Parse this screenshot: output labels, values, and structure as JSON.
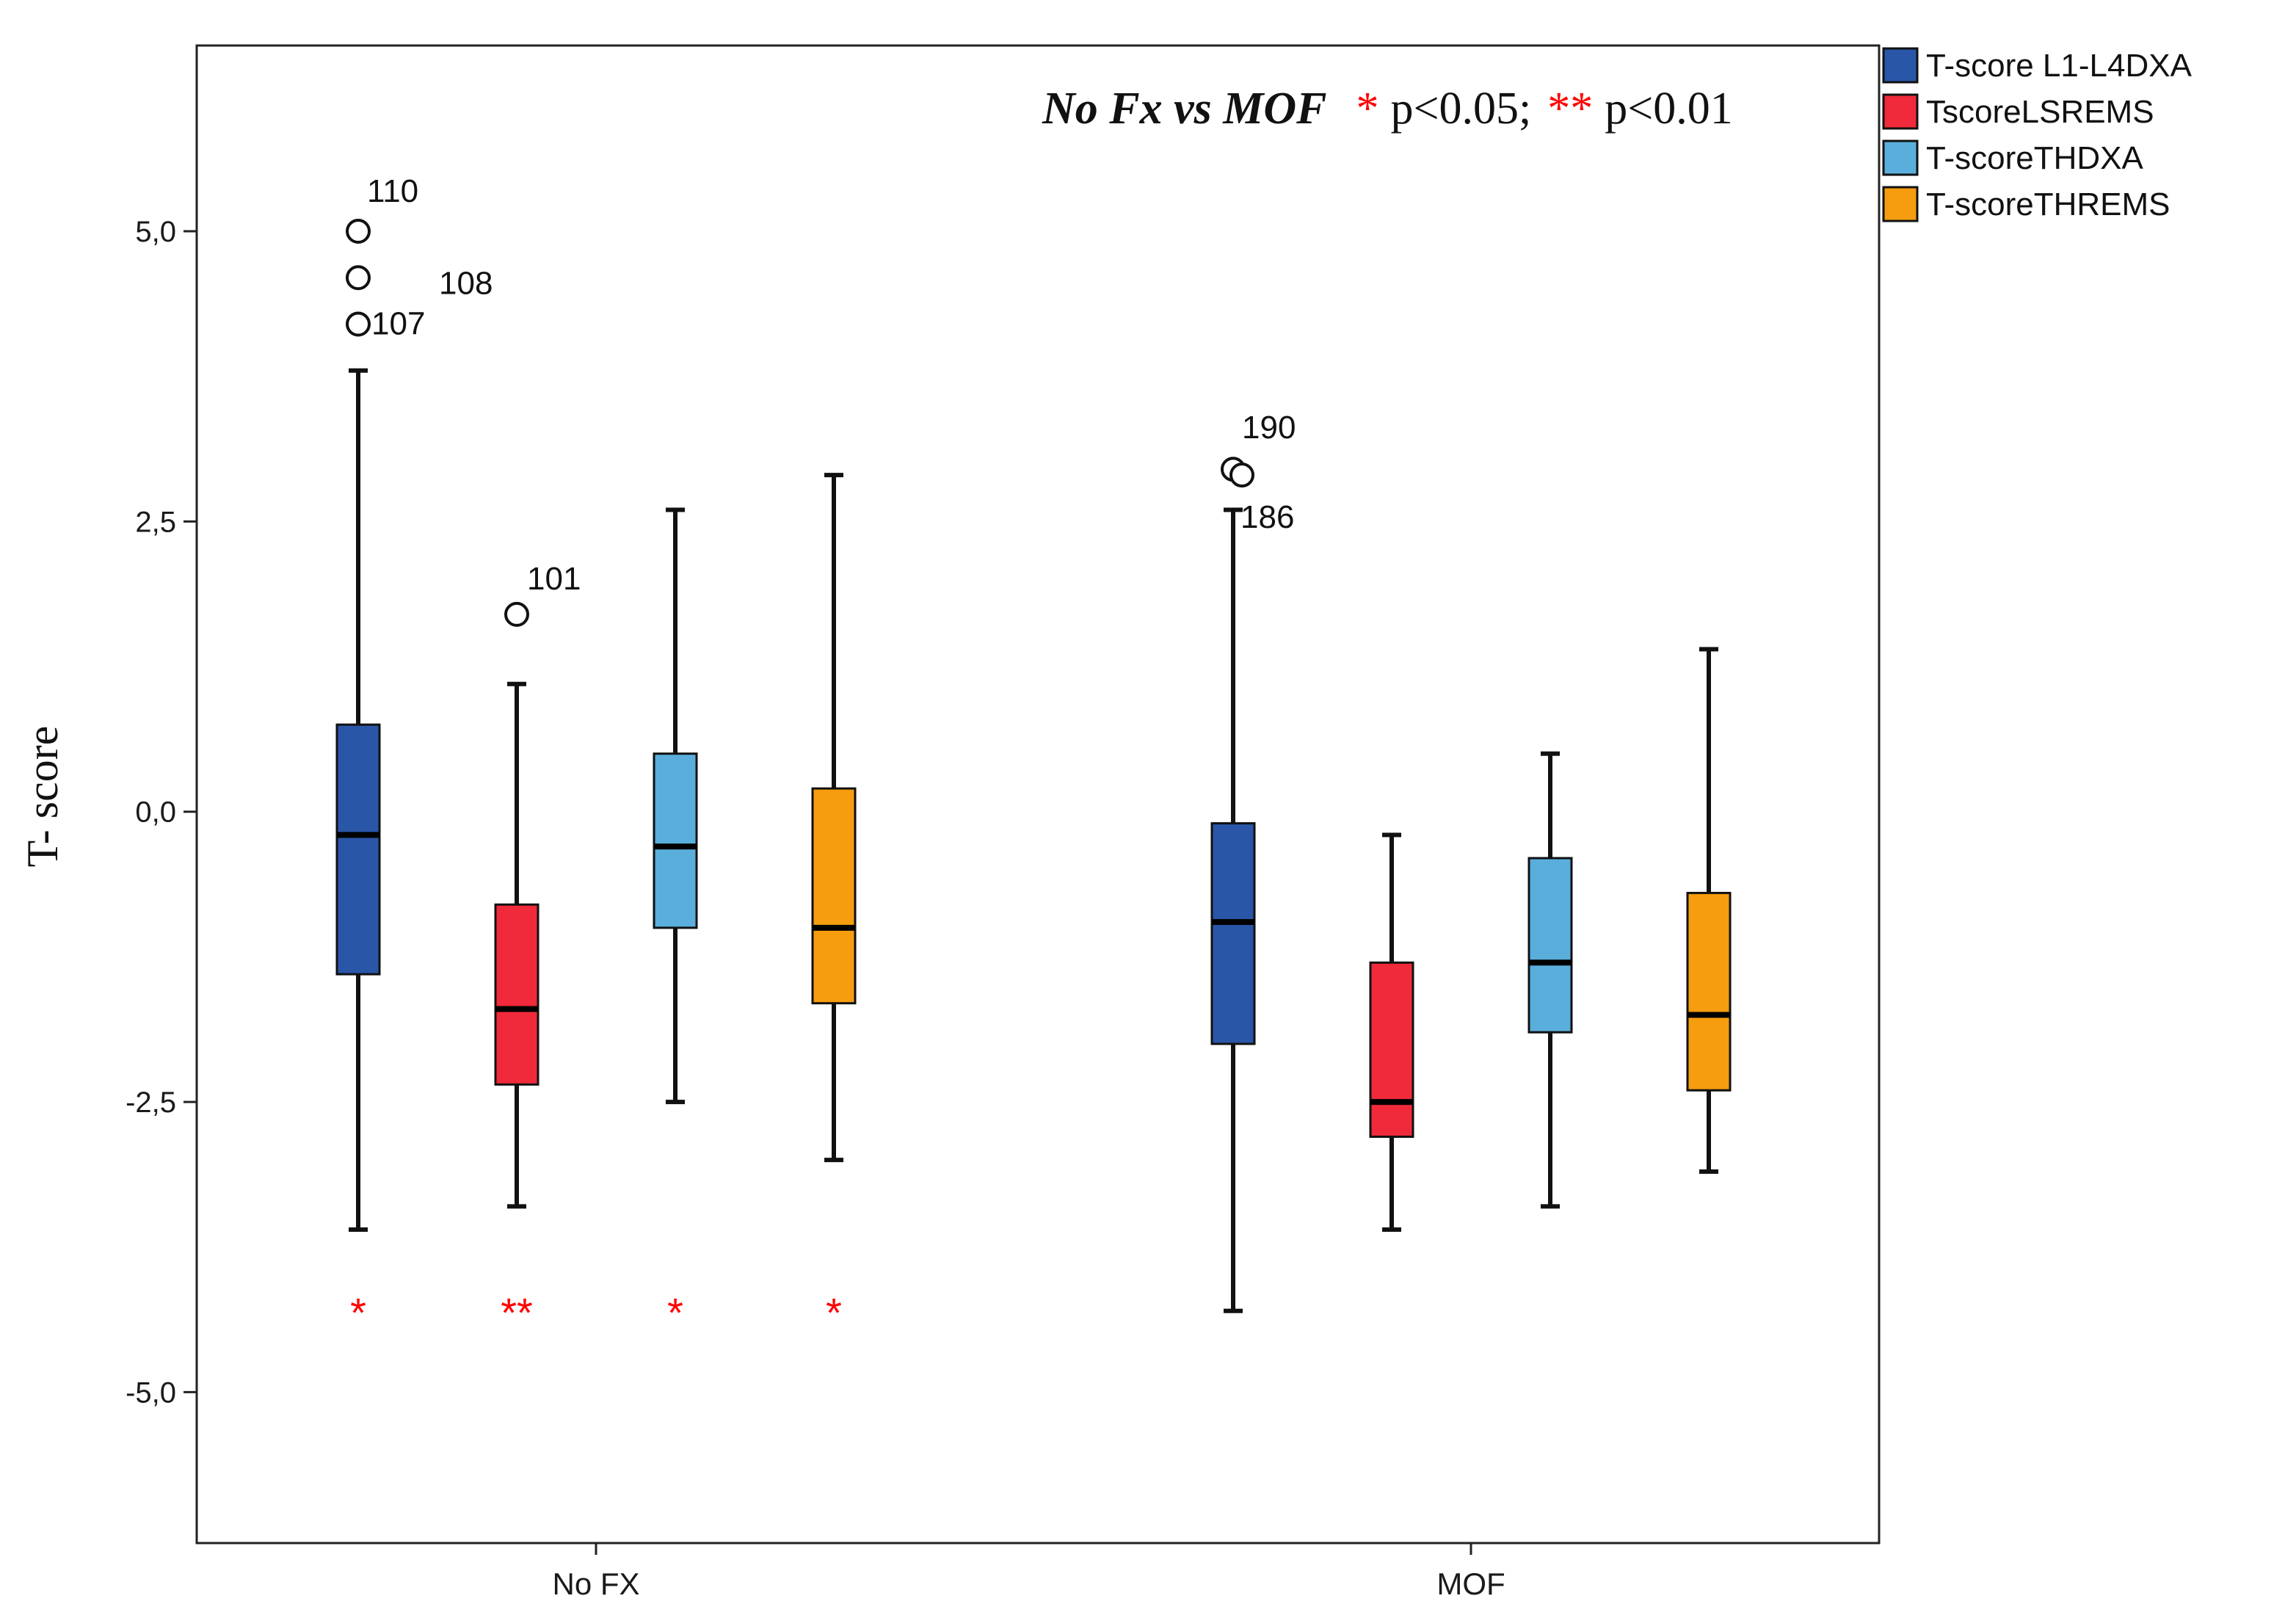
{
  "chart_data": {
    "type": "boxplot",
    "ylabel": "T- score",
    "ylim": [
      -6.3,
      6.6
    ],
    "yticks": [
      5.0,
      2.5,
      0.0,
      -2.5,
      -5.0
    ],
    "ytick_labels": [
      "5,0",
      "2,5",
      "0,0",
      "-2,5",
      "-5,0"
    ],
    "categories": [
      "No FX",
      "MOF"
    ],
    "series": [
      {
        "name": "T-score L1-L4DXA",
        "color": "#2a56a8",
        "boxes": [
          {
            "whisker_low": -3.6,
            "q1": -1.4,
            "median": -0.2,
            "q3": 0.75,
            "whisker_high": 3.8
          },
          {
            "whisker_low": -4.3,
            "q1": -2.0,
            "median": -0.95,
            "q3": -0.1,
            "whisker_high": 2.6
          }
        ]
      },
      {
        "name": "TscoreLSREMS",
        "color": "#f02a3a",
        "boxes": [
          {
            "whisker_low": -3.4,
            "q1": -2.35,
            "median": -1.7,
            "q3": -0.8,
            "whisker_high": 1.1
          },
          {
            "whisker_low": -3.6,
            "q1": -2.8,
            "median": -2.5,
            "q3": -1.3,
            "whisker_high": -0.2
          }
        ]
      },
      {
        "name": "T-scoreTHDXA",
        "color": "#5aaedc",
        "boxes": [
          {
            "whisker_low": -2.5,
            "q1": -1.0,
            "median": -0.3,
            "q3": 0.5,
            "whisker_high": 2.6
          },
          {
            "whisker_low": -3.4,
            "q1": -1.9,
            "median": -1.3,
            "q3": -0.4,
            "whisker_high": 0.5
          }
        ]
      },
      {
        "name": "T-scoreTHREMS",
        "color": "#f59d0e",
        "boxes": [
          {
            "whisker_low": -3.0,
            "q1": -1.65,
            "median": -1.0,
            "q3": 0.2,
            "whisker_high": 2.9
          },
          {
            "whisker_low": -3.1,
            "q1": -2.4,
            "median": -1.75,
            "q3": -0.7,
            "whisker_high": 1.4
          }
        ]
      }
    ],
    "outliers": [
      {
        "series": 0,
        "category": 0,
        "value": 5.0,
        "label": "110"
      },
      {
        "series": 0,
        "category": 0,
        "value": 4.6,
        "label": "108"
      },
      {
        "series": 0,
        "category": 0,
        "value": 4.2,
        "label": "107"
      },
      {
        "series": 1,
        "category": 0,
        "value": 1.7,
        "label": "101"
      },
      {
        "series": 0,
        "category": 1,
        "value": 2.95,
        "label": "190"
      },
      {
        "series": 0,
        "category": 1,
        "value": 2.9,
        "label": "186"
      }
    ],
    "significance_markers": [
      {
        "series": 0,
        "category": 0,
        "marker": "*"
      },
      {
        "series": 1,
        "category": 0,
        "marker": "**"
      },
      {
        "series": 2,
        "category": 0,
        "marker": "*"
      },
      {
        "series": 3,
        "category": 0,
        "marker": "*"
      }
    ],
    "annotation": {
      "comparison": "No Fx vs MOF",
      "star1": "*",
      "p1": "p<0.05;",
      "star2": "**",
      "p2": "p<0.01"
    },
    "legend": {
      "placement": "outside-top-right"
    }
  }
}
